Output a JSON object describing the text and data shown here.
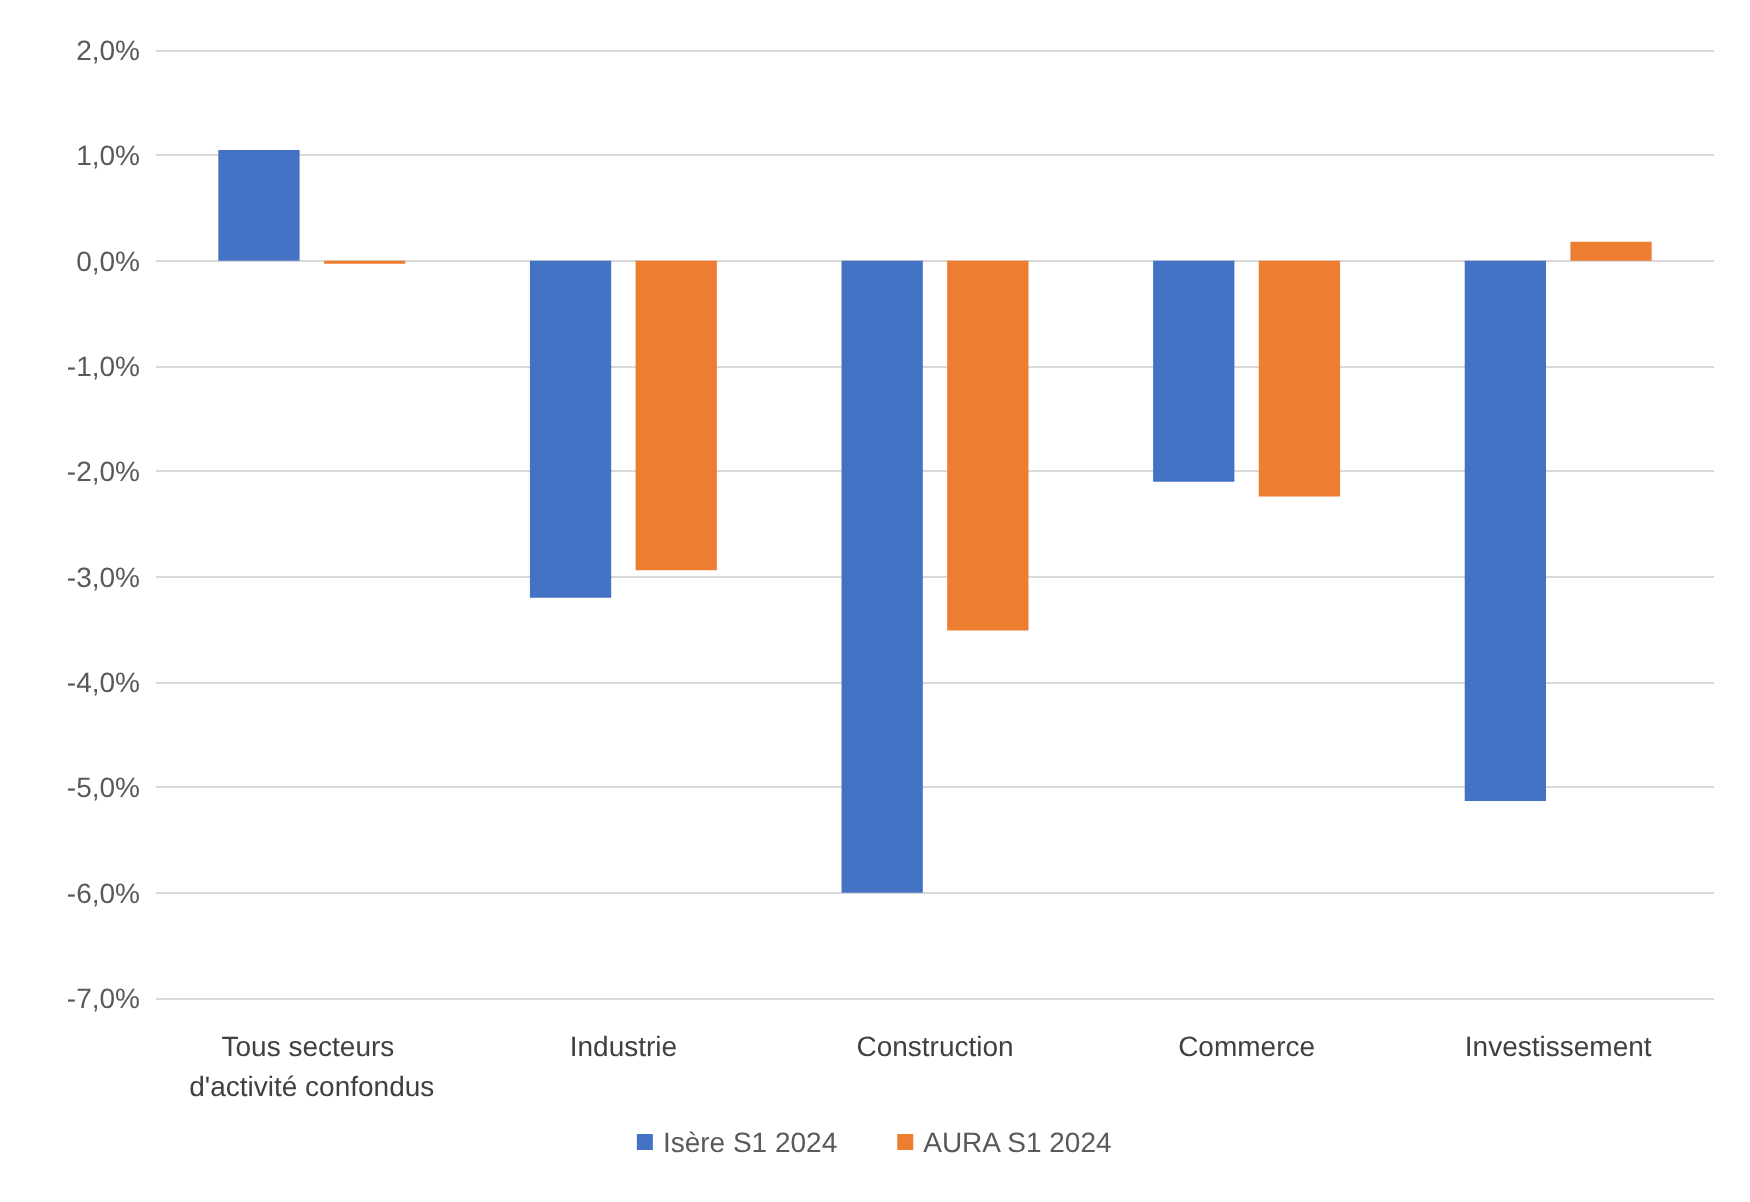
{
  "chart_data": {
    "type": "bar",
    "categories": [
      "Tous secteurs d'activité confondus",
      "Industrie",
      "Construction",
      "Commerce",
      "Investissement"
    ],
    "series": [
      {
        "name": "Isère S1 2024",
        "color": "#4472c4",
        "values": [
          1.05,
          -3.2,
          -6.0,
          -2.1,
          -5.13
        ]
      },
      {
        "name": "AURA S1 2024",
        "color": "#ed7d31",
        "values": [
          -0.03,
          -2.94,
          -3.51,
          -2.24,
          0.18
        ]
      }
    ],
    "ylim": [
      -7,
      2
    ],
    "yticks": [
      {
        "value": -7,
        "label": "-7,0%"
      },
      {
        "value": -6,
        "label": "-6,0%"
      },
      {
        "value": -5,
        "label": "-5,0%"
      },
      {
        "value": -4,
        "label": "-4,0%"
      },
      {
        "value": -3,
        "label": "-3,0%"
      },
      {
        "value": -2,
        "label": "-2,0%"
      },
      {
        "value": -1,
        "label": "-1,0%"
      },
      {
        "value": 0,
        "label": "0,0%"
      },
      {
        "value": 1,
        "label": "1,0%"
      },
      {
        "value": 2,
        "label": "2,0%"
      }
    ],
    "grid": "y",
    "legend": "bottom"
  }
}
